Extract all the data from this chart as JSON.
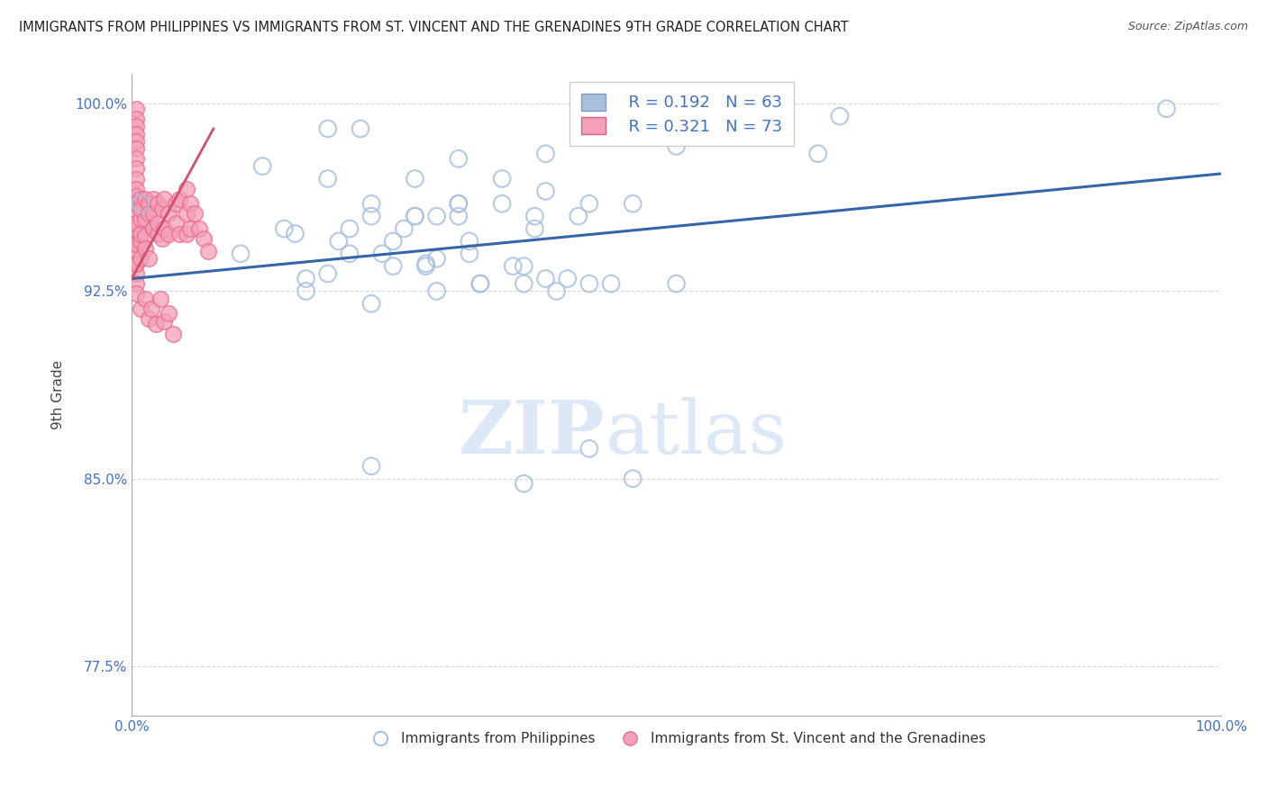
{
  "title": "IMMIGRANTS FROM PHILIPPINES VS IMMIGRANTS FROM ST. VINCENT AND THE GRENADINES 9TH GRADE CORRELATION CHART",
  "source": "Source: ZipAtlas.com",
  "ylabel": "9th Grade",
  "xlim": [
    0.0,
    1.0
  ],
  "ylim": [
    0.755,
    1.012
  ],
  "yticks": [
    0.775,
    0.85,
    0.925,
    1.0
  ],
  "ytick_labels": [
    "77.5%",
    "85.0%",
    "92.5%",
    "100.0%"
  ],
  "legend_blue_R": "0.192",
  "legend_blue_N": "63",
  "legend_pink_R": "0.321",
  "legend_pink_N": "73",
  "blue_color": "#a8c0df",
  "pink_color": "#f4a0b8",
  "line_color": "#3465a8",
  "text_color": "#4472c4",
  "title_color": "#222222",
  "watermark_color": "#dce8f5",
  "trend_y_start": 0.93,
  "trend_y_end": 0.972,
  "background_color": "#ffffff",
  "grid_color": "#d8d8d8",
  "legend_border_color": "#cccccc",
  "blue_scatter_x": [
    0.008,
    0.18,
    0.3,
    0.21,
    0.38,
    0.5,
    0.63,
    0.65,
    0.18,
    0.12,
    0.22,
    0.26,
    0.3,
    0.34,
    0.38,
    0.3,
    0.26,
    0.34,
    0.42,
    0.22,
    0.26,
    0.3,
    0.37,
    0.14,
    0.2,
    0.24,
    0.28,
    0.19,
    0.15,
    0.25,
    0.31,
    0.37,
    0.41,
    0.46,
    0.1,
    0.18,
    0.24,
    0.16,
    0.27,
    0.31,
    0.35,
    0.42,
    0.32,
    0.22,
    0.16,
    0.27,
    0.2,
    0.23,
    0.28,
    0.36,
    0.38,
    0.44,
    0.32,
    0.28,
    0.36,
    0.39,
    0.22,
    0.42,
    0.46,
    0.36,
    0.95,
    0.4,
    0.5
  ],
  "blue_scatter_y": [
    0.96,
    0.99,
    0.978,
    0.99,
    0.98,
    0.983,
    0.98,
    0.995,
    0.97,
    0.975,
    0.96,
    0.97,
    0.96,
    0.97,
    0.965,
    0.955,
    0.955,
    0.96,
    0.96,
    0.955,
    0.955,
    0.96,
    0.955,
    0.95,
    0.95,
    0.945,
    0.955,
    0.945,
    0.948,
    0.95,
    0.945,
    0.95,
    0.955,
    0.96,
    0.94,
    0.932,
    0.935,
    0.93,
    0.935,
    0.94,
    0.935,
    0.928,
    0.928,
    0.92,
    0.925,
    0.936,
    0.94,
    0.94,
    0.938,
    0.935,
    0.93,
    0.928,
    0.928,
    0.925,
    0.928,
    0.925,
    0.855,
    0.862,
    0.85,
    0.848,
    0.998,
    0.93,
    0.928
  ],
  "pink_scatter_x": [
    0.004,
    0.004,
    0.004,
    0.004,
    0.004,
    0.004,
    0.004,
    0.004,
    0.004,
    0.004,
    0.004,
    0.004,
    0.004,
    0.004,
    0.004,
    0.004,
    0.004,
    0.004,
    0.004,
    0.004,
    0.004,
    0.004,
    0.004,
    0.004,
    0.004,
    0.008,
    0.008,
    0.008,
    0.008,
    0.008,
    0.008,
    0.012,
    0.012,
    0.012,
    0.012,
    0.016,
    0.016,
    0.016,
    0.02,
    0.02,
    0.02,
    0.02,
    0.024,
    0.024,
    0.024,
    0.028,
    0.028,
    0.03,
    0.03,
    0.034,
    0.034,
    0.04,
    0.04,
    0.044,
    0.044,
    0.05,
    0.05,
    0.05,
    0.054,
    0.054,
    0.058,
    0.062,
    0.066,
    0.07,
    0.008,
    0.012,
    0.016,
    0.018,
    0.022,
    0.026,
    0.03,
    0.034,
    0.038
  ],
  "pink_scatter_y": [
    0.998,
    0.994,
    0.991,
    0.988,
    0.985,
    0.982,
    0.978,
    0.974,
    0.97,
    0.966,
    0.963,
    0.96,
    0.956,
    0.952,
    0.948,
    0.944,
    0.94,
    0.936,
    0.932,
    0.928,
    0.924,
    0.96,
    0.952,
    0.944,
    0.936,
    0.962,
    0.954,
    0.945,
    0.938,
    0.958,
    0.948,
    0.962,
    0.954,
    0.947,
    0.942,
    0.938,
    0.96,
    0.956,
    0.95,
    0.962,
    0.956,
    0.95,
    0.948,
    0.96,
    0.952,
    0.946,
    0.958,
    0.962,
    0.95,
    0.956,
    0.948,
    0.96,
    0.952,
    0.962,
    0.948,
    0.966,
    0.956,
    0.948,
    0.96,
    0.95,
    0.956,
    0.95,
    0.946,
    0.941,
    0.918,
    0.922,
    0.914,
    0.918,
    0.912,
    0.922,
    0.913,
    0.916,
    0.908
  ]
}
